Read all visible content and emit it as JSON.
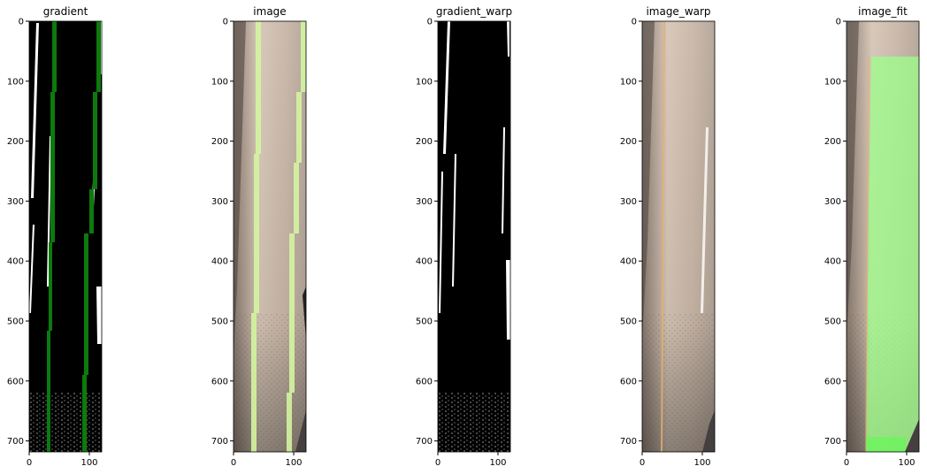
{
  "panels": [
    {
      "id": "gradient",
      "title": "gradient",
      "kind": "binary",
      "x_ticks": [
        "0",
        "100"
      ],
      "y_ticks": [
        "0",
        "100",
        "200",
        "300",
        "400",
        "500",
        "600",
        "700"
      ],
      "overlay_color": "#0d7a0d"
    },
    {
      "id": "image",
      "title": "image",
      "kind": "photo",
      "x_ticks": [
        "0",
        "100"
      ],
      "y_ticks": [
        "0",
        "100",
        "200",
        "300",
        "400",
        "500",
        "600",
        "700"
      ],
      "overlay_color": "#d4f5a0"
    },
    {
      "id": "gradient_warp",
      "title": "gradient_warp",
      "kind": "binary",
      "x_ticks": [
        "0",
        "100"
      ],
      "y_ticks": [
        "0",
        "100",
        "200",
        "300",
        "400",
        "500",
        "600",
        "700"
      ]
    },
    {
      "id": "image_warp",
      "title": "image_warp",
      "kind": "photo",
      "x_ticks": [
        "0",
        "100"
      ],
      "y_ticks": [
        "0",
        "100",
        "200",
        "300",
        "400",
        "500",
        "600",
        "700"
      ]
    },
    {
      "id": "image_fit",
      "title": "image_fit",
      "kind": "photo",
      "x_ticks": [
        "0",
        "100"
      ],
      "y_ticks": [
        "0",
        "100",
        "200",
        "300",
        "400",
        "500",
        "600",
        "700"
      ],
      "overlay_color": "#9cff8a"
    }
  ],
  "colors": {
    "road": "#c8b8a8",
    "road_dark": "#6b5e55",
    "binary_bg": "#000000",
    "binary_fg": "#ffffff",
    "lane_orange": "#e8b070"
  }
}
